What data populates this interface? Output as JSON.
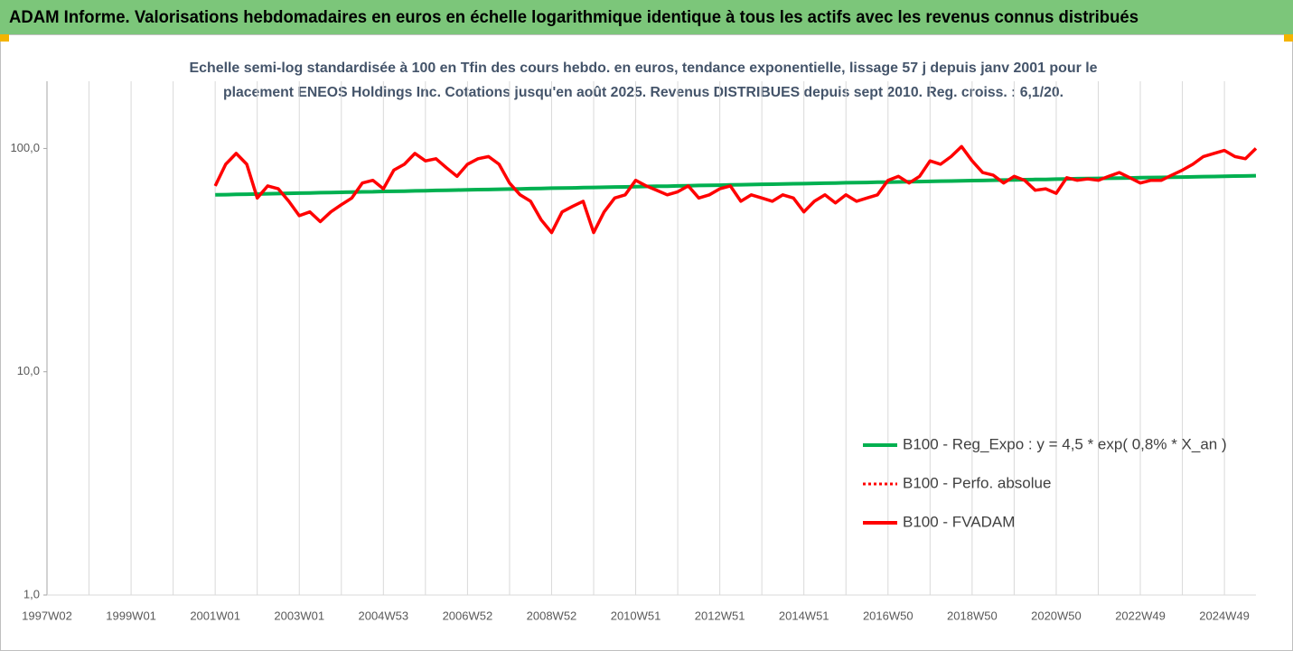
{
  "header": {
    "title": "ADAM Informe. Valorisations hebdomadaires en euros en échelle logarithmique identique à tous les actifs avec les revenus connus distribués"
  },
  "chart_data": {
    "type": "line",
    "title": [
      "Echelle semi-log standardisée à 100 en Tfin des cours hebdo. en euros, tendance exponentielle, lissage 57 j depuis janv 2001 pour le",
      "placement ENEOS Holdings Inc. Cotations jusqu'en août 2025. Revenus DISTRIBUES depuis sept 2010. Reg. croiss. : 6,1/20."
    ],
    "log": true,
    "ylim": [
      1,
      200
    ],
    "yticks": [
      {
        "value": 1,
        "label": "1,0"
      },
      {
        "value": 10,
        "label": "10,0"
      },
      {
        "value": 100,
        "label": "100,0"
      }
    ],
    "grid": true,
    "categories": [
      "1997W02",
      null,
      null,
      null,
      null,
      null,
      null,
      null,
      "1999W01",
      null,
      null,
      null,
      null,
      null,
      null,
      null,
      "2001W01",
      null,
      null,
      null,
      null,
      null,
      null,
      null,
      "2003W01",
      null,
      null,
      null,
      null,
      null,
      null,
      null,
      "2004W53",
      null,
      null,
      null,
      null,
      null,
      null,
      null,
      "2006W52",
      null,
      null,
      null,
      null,
      null,
      null,
      null,
      "2008W52",
      null,
      null,
      null,
      null,
      null,
      null,
      null,
      "2010W51",
      null,
      null,
      null,
      null,
      null,
      null,
      null,
      "2012W51",
      null,
      null,
      null,
      null,
      null,
      null,
      null,
      "2014W51",
      null,
      null,
      null,
      null,
      null,
      null,
      null,
      "2016W50",
      null,
      null,
      null,
      null,
      null,
      null,
      null,
      "2018W50",
      null,
      null,
      null,
      null,
      null,
      null,
      null,
      "2020W50",
      null,
      null,
      null,
      null,
      null,
      null,
      null,
      "2022W49",
      null,
      null,
      null,
      null,
      null,
      null,
      null,
      "2024W49",
      null,
      null,
      null
    ],
    "series": [
      {
        "name": "B100 - Reg_Expo : y = 4,5 * exp( 0,8% *  X_an )",
        "color": "#00b050",
        "style": "solid",
        "values": [
          null,
          null,
          null,
          null,
          null,
          null,
          null,
          null,
          null,
          null,
          null,
          null,
          null,
          null,
          null,
          null,
          62.0,
          62.1,
          62.3,
          62.4,
          62.5,
          62.7,
          62.8,
          63.0,
          63.1,
          63.2,
          63.4,
          63.5,
          63.6,
          63.8,
          63.9,
          64.0,
          64.2,
          64.3,
          64.4,
          64.6,
          64.7,
          64.9,
          65.0,
          65.1,
          65.3,
          65.4,
          65.5,
          65.7,
          65.8,
          65.9,
          66.1,
          66.2,
          66.4,
          66.5,
          66.6,
          66.8,
          66.9,
          67.0,
          67.2,
          67.3,
          67.4,
          67.6,
          67.7,
          67.8,
          68.0,
          68.1,
          68.3,
          68.4,
          68.5,
          68.7,
          68.8,
          68.9,
          69.1,
          69.2,
          69.3,
          69.5,
          69.6,
          69.8,
          69.9,
          70.0,
          70.2,
          70.3,
          70.4,
          70.6,
          70.7,
          70.8,
          71.0,
          71.1,
          71.2,
          71.4,
          71.5,
          71.7,
          71.8,
          71.9,
          72.1,
          72.2,
          72.3,
          72.5,
          72.6,
          72.7,
          72.9,
          73.0,
          73.2,
          73.3,
          73.4,
          73.6,
          73.7,
          73.8,
          74.0,
          74.1,
          74.2,
          74.4,
          74.5,
          74.6,
          74.8,
          74.9,
          75.1,
          75.2,
          75.3,
          75.5
        ]
      },
      {
        "name": "B100 - Perfo. absolue",
        "color": "#ff0000",
        "style": "dotted",
        "values": [
          null,
          null,
          null,
          null,
          null,
          null,
          null,
          null,
          null,
          null,
          null,
          null,
          null,
          null,
          null,
          null,
          68,
          85,
          95,
          85,
          60,
          68,
          66,
          58,
          50,
          52,
          47,
          52,
          56,
          60,
          70,
          72,
          66,
          80,
          85,
          95,
          88,
          90,
          82,
          75,
          85,
          90,
          92,
          85,
          70,
          62,
          58,
          48,
          42,
          52,
          55,
          58,
          42,
          52,
          60,
          62,
          72,
          68,
          65,
          62,
          64,
          68,
          60,
          62,
          66,
          68,
          58,
          62,
          60,
          58,
          62,
          60,
          52,
          58,
          62,
          57,
          62,
          58,
          60,
          62,
          72,
          75,
          70,
          75,
          88,
          85,
          92,
          102,
          88,
          78,
          76,
          70,
          75,
          72,
          65,
          66,
          63,
          74,
          72,
          73,
          72,
          75,
          78,
          74,
          70,
          72,
          72,
          76,
          80,
          85,
          92,
          95,
          98,
          92,
          90,
          100
        ]
      },
      {
        "name": "B100 - FVADAM",
        "color": "#ff0000",
        "style": "solid",
        "values": [
          null,
          null,
          null,
          null,
          null,
          null,
          null,
          null,
          null,
          null,
          null,
          null,
          null,
          null,
          null,
          null,
          68,
          85,
          95,
          85,
          60,
          68,
          66,
          58,
          50,
          52,
          47,
          52,
          56,
          60,
          70,
          72,
          66,
          80,
          85,
          95,
          88,
          90,
          82,
          75,
          85,
          90,
          92,
          85,
          70,
          62,
          58,
          48,
          42,
          52,
          55,
          58,
          42,
          52,
          60,
          62,
          72,
          68,
          65,
          62,
          64,
          68,
          60,
          62,
          66,
          68,
          58,
          62,
          60,
          58,
          62,
          60,
          52,
          58,
          62,
          57,
          62,
          58,
          60,
          62,
          72,
          75,
          70,
          75,
          88,
          85,
          92,
          102,
          88,
          78,
          76,
          70,
          75,
          72,
          65,
          66,
          63,
          74,
          72,
          73,
          72,
          75,
          78,
          74,
          70,
          72,
          72,
          76,
          80,
          85,
          92,
          95,
          98,
          92,
          90,
          100
        ]
      }
    ]
  }
}
